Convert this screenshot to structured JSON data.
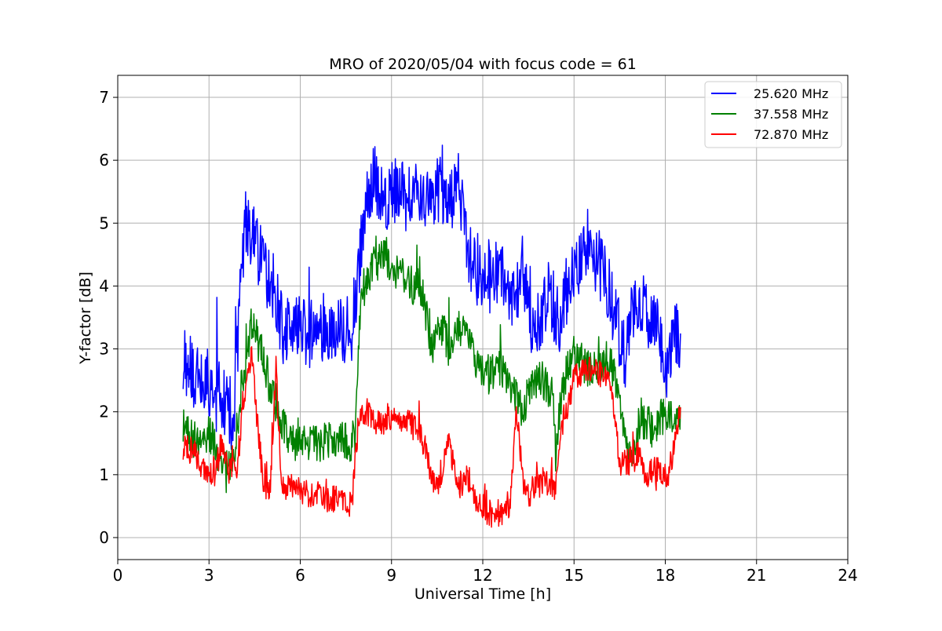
{
  "chart_data": {
    "type": "line",
    "title": "MRO of 2020/05/04 with focus code = 61",
    "xlabel": "Universal Time [h]",
    "ylabel": "Y-factor [dB]",
    "xlim": [
      0,
      24
    ],
    "ylim": [
      -0.35,
      7.35
    ],
    "xticks": [
      0,
      3,
      6,
      9,
      12,
      15,
      18,
      21,
      24
    ],
    "yticks": [
      0,
      1,
      2,
      3,
      4,
      5,
      6,
      7
    ],
    "grid": true,
    "legend_position": "top-right",
    "series": [
      {
        "name": "25.620 MHz",
        "color": "#0000ff",
        "x": [
          2.15,
          2.5,
          2.9,
          3.2,
          3.35,
          3.6,
          3.8,
          4.0,
          4.2,
          4.5,
          4.8,
          5.1,
          5.4,
          5.8,
          6.2,
          6.6,
          7.0,
          7.4,
          7.7,
          7.9,
          8.2,
          8.5,
          8.8,
          9.1,
          9.5,
          9.9,
          10.3,
          10.6,
          10.9,
          11.2,
          11.5,
          11.8,
          12.2,
          12.6,
          13.0,
          13.3,
          13.6,
          13.9,
          14.2,
          14.5,
          14.8,
          15.2,
          15.5,
          15.8,
          16.1,
          16.4,
          16.7,
          17.0,
          17.3,
          17.7,
          18.0,
          18.3,
          18.5
        ],
        "y": [
          2.9,
          2.6,
          2.5,
          2.2,
          2.3,
          2.0,
          1.8,
          3.6,
          5.0,
          4.7,
          4.3,
          4.0,
          3.3,
          3.4,
          3.2,
          3.3,
          3.4,
          3.3,
          3.3,
          4.2,
          5.6,
          5.7,
          5.3,
          5.5,
          5.4,
          5.5,
          5.4,
          5.6,
          5.2,
          5.7,
          4.6,
          4.2,
          4.1,
          4.3,
          3.7,
          4.3,
          3.3,
          3.5,
          3.9,
          3.4,
          4.1,
          4.4,
          4.5,
          4.4,
          4.0,
          3.4,
          2.8,
          3.9,
          3.6,
          3.4,
          2.6,
          3.2,
          3.1
        ]
      },
      {
        "name": "37.558 MHz",
        "color": "#008000",
        "x": [
          2.15,
          2.4,
          2.7,
          3.0,
          3.3,
          3.6,
          3.8,
          4.1,
          4.4,
          4.7,
          5.0,
          5.3,
          5.6,
          6.0,
          6.4,
          6.8,
          7.2,
          7.6,
          7.8,
          8.0,
          8.4,
          8.8,
          9.2,
          9.6,
          10.0,
          10.3,
          10.6,
          10.9,
          11.2,
          11.5,
          11.8,
          12.2,
          12.6,
          13.0,
          13.3,
          13.6,
          14.0,
          14.3,
          14.4,
          14.6,
          15.0,
          15.4,
          15.8,
          16.2,
          16.5,
          16.8,
          17.2,
          17.6,
          18.0,
          18.5
        ],
        "y": [
          1.8,
          1.6,
          1.5,
          1.7,
          1.3,
          1.0,
          1.3,
          2.5,
          3.4,
          3.0,
          2.4,
          2.0,
          1.6,
          1.5,
          1.5,
          1.5,
          1.6,
          1.5,
          1.6,
          3.9,
          4.3,
          4.5,
          4.2,
          4.0,
          4.0,
          3.0,
          3.4,
          3.0,
          3.3,
          3.2,
          2.7,
          2.6,
          2.7,
          2.3,
          2.0,
          2.4,
          2.5,
          2.3,
          1.3,
          2.4,
          2.9,
          2.7,
          2.6,
          2.9,
          2.0,
          1.2,
          1.9,
          1.7,
          2.0,
          1.9
        ]
      },
      {
        "name": "72.870 MHz",
        "color": "#ff0000",
        "x": [
          2.15,
          2.5,
          2.8,
          3.1,
          3.4,
          3.7,
          3.9,
          4.1,
          4.4,
          4.6,
          4.8,
          5.0,
          5.2,
          5.4,
          5.8,
          6.2,
          6.6,
          7.0,
          7.4,
          7.7,
          7.9,
          8.2,
          8.6,
          9.0,
          9.4,
          9.8,
          10.1,
          10.3,
          10.6,
          10.9,
          11.2,
          11.5,
          11.8,
          12.2,
          12.6,
          12.9,
          13.1,
          13.4,
          13.7,
          14.0,
          14.4,
          14.6,
          15.0,
          15.4,
          15.8,
          16.2,
          16.5,
          16.8,
          17.1,
          17.4,
          17.8,
          18.1,
          18.5
        ],
        "y": [
          1.4,
          1.4,
          1.1,
          1.0,
          1.5,
          1.1,
          1.0,
          2.0,
          2.9,
          1.8,
          0.8,
          0.7,
          2.7,
          0.8,
          0.8,
          0.7,
          0.7,
          0.6,
          0.6,
          0.5,
          1.8,
          2.0,
          1.8,
          1.9,
          1.9,
          1.7,
          1.5,
          0.9,
          1.0,
          1.5,
          0.8,
          1.0,
          0.6,
          0.4,
          0.4,
          0.5,
          2.0,
          0.6,
          0.8,
          0.9,
          0.8,
          1.8,
          2.5,
          2.7,
          2.6,
          2.5,
          1.2,
          1.2,
          1.3,
          1.0,
          1.1,
          1.0,
          2.0
        ]
      }
    ]
  }
}
